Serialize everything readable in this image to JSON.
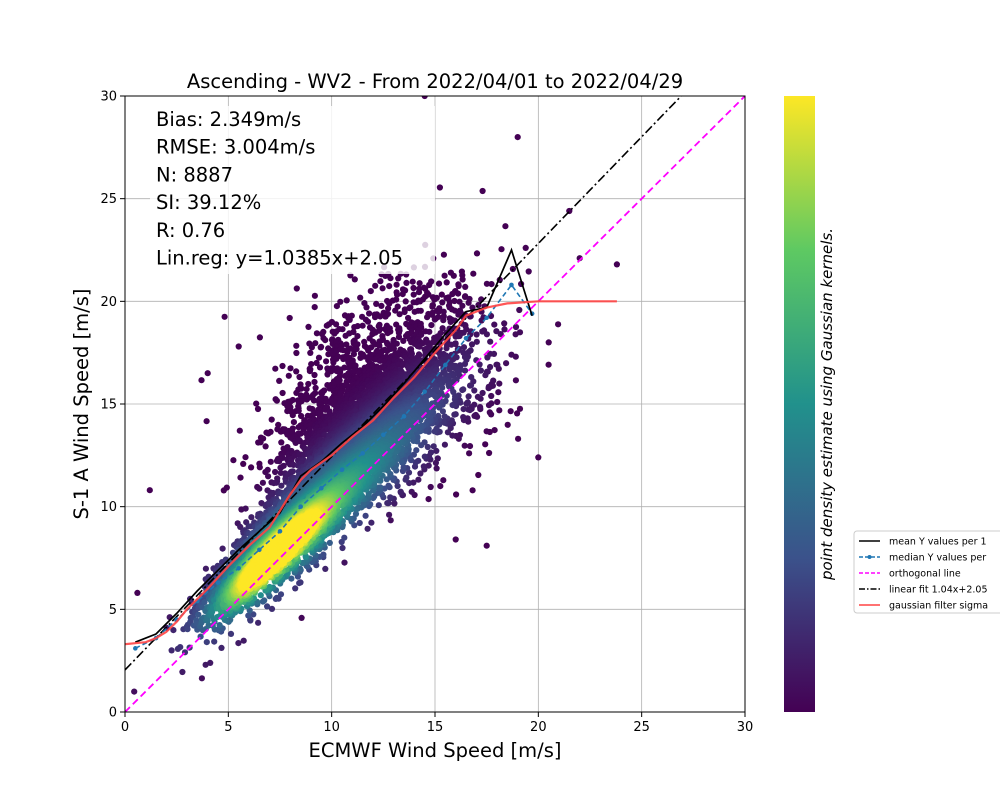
{
  "chart_data": {
    "type": "scatter",
    "title": "Ascending - WV2 - From 2022/04/01 to 2022/04/29",
    "xlabel": "ECMWF Wind Speed [m/s]",
    "ylabel": "S-1 A Wind Speed [m/s]",
    "xlim": [
      0,
      30
    ],
    "ylim": [
      0,
      30
    ],
    "xticks": [
      0,
      5,
      10,
      15,
      20,
      25,
      30
    ],
    "yticks": [
      0,
      5,
      10,
      15,
      20,
      25,
      30
    ],
    "grid": true,
    "colorbar_label": "point density estimate using Gaussian kernels.",
    "colormap": [
      "#440154",
      "#3b528b",
      "#21918c",
      "#5ec962",
      "#fde725"
    ],
    "stats": [
      "Bias: 2.349m/s",
      "RMSE: 3.004m/s",
      "N: 8887",
      "SI: 39.12%",
      "R: 0.76",
      "Lin.reg: y=1.0385x+2.05"
    ],
    "legend_position": "right, outside plot",
    "legend": [
      {
        "label": "mean Y values per 1",
        "color": "#000000",
        "style": "solid"
      },
      {
        "label": "median Y values per",
        "color": "#1f77b4",
        "style": "dashed-dots"
      },
      {
        "label": "orthogonal line",
        "color": "#ff00ff",
        "style": "dashed"
      },
      {
        "label": "linear fit 1.04x+2.05",
        "color": "#000000",
        "style": "dashdot"
      },
      {
        "label": "gaussian filter sigma",
        "color": "#ff4444",
        "style": "solid"
      }
    ],
    "series": [
      {
        "name": "mean Y values per 1",
        "color": "#000000",
        "x": [
          0.5,
          1.5,
          2.5,
          3.5,
          4.5,
          5.5,
          6.5,
          7.5,
          8.5,
          9.5,
          10.5,
          11.5,
          12.5,
          13.5,
          14.5,
          15.5,
          16.5,
          17.5,
          18.7,
          19.7
        ],
        "y": [
          3.4,
          3.8,
          4.8,
          5.9,
          6.9,
          7.9,
          8.8,
          9.7,
          11.5,
          12.2,
          13.1,
          13.9,
          14.9,
          16.0,
          17.2,
          18.4,
          19.5,
          19.7,
          22.5,
          19.3
        ]
      },
      {
        "name": "median Y values per",
        "color": "#1f77b4",
        "x": [
          0.5,
          1.5,
          2.5,
          3.5,
          4.5,
          5.5,
          6.5,
          7.5,
          8.5,
          9.5,
          10.5,
          11.5,
          12.5,
          13.5,
          14.5,
          15.5,
          16.5,
          17.5,
          18.7,
          19.7
        ],
        "y": [
          3.1,
          3.6,
          4.5,
          5.4,
          6.3,
          7.0,
          7.9,
          8.8,
          10.0,
          10.9,
          11.8,
          12.6,
          13.5,
          14.4,
          15.6,
          16.9,
          18.2,
          19.2,
          20.8,
          19.4
        ]
      },
      {
        "name": "gaussian filter sigma",
        "color": "#ff4444",
        "x": [
          0,
          0.5,
          1.0,
          1.5,
          2.0,
          2.5,
          3.0,
          4.0,
          5.0,
          6.0,
          7.0,
          8.0,
          8.5,
          9.0,
          10.0,
          11.0,
          12.0,
          13.0,
          14.0,
          15.0,
          16.0,
          16.5,
          17.5,
          18.5,
          20.0,
          21.0,
          22.0,
          23.8
        ],
        "y": [
          3.3,
          3.35,
          3.4,
          3.6,
          3.9,
          4.4,
          5.0,
          6.0,
          7.1,
          8.1,
          9.0,
          10.6,
          11.3,
          11.8,
          12.5,
          13.4,
          14.2,
          15.3,
          16.3,
          17.5,
          18.6,
          19.3,
          19.7,
          19.9,
          20.0,
          20.0,
          20.0,
          20.0
        ]
      },
      {
        "name": "linear fit 1.04x+2.05",
        "color": "#000000",
        "slope": 1.0385,
        "intercept": 2.05
      },
      {
        "name": "orthogonal line",
        "color": "#ff00ff",
        "slope": 1,
        "intercept": 0
      }
    ],
    "density_regions": [
      {
        "cx": 9.5,
        "cy": 10.5,
        "rx": 6.5,
        "ry": 1.55,
        "angle": 48,
        "count": 3600
      },
      {
        "cx": 7.0,
        "cy": 8.0,
        "rx": 3.6,
        "ry": 0.95,
        "angle": 45,
        "count": 2400
      },
      {
        "cx": 11.5,
        "cy": 14.0,
        "rx": 5.0,
        "ry": 2.6,
        "angle": 45,
        "count": 1500
      },
      {
        "cx": 13.0,
        "cy": 16.0,
        "rx": 6.0,
        "ry": 4.2,
        "angle": 45,
        "count": 1300
      }
    ],
    "outlier_points": [
      [
        1.2,
        10.8
      ],
      [
        4.0,
        16.5
      ],
      [
        20.5,
        18.0
      ],
      [
        22.0,
        22.1
      ],
      [
        21.5,
        24.4
      ],
      [
        23.8,
        21.8
      ],
      [
        20.0,
        12.4
      ],
      [
        17.5,
        8.1
      ],
      [
        16.0,
        8.4
      ],
      [
        19.0,
        28.0
      ],
      [
        14.5,
        30.0
      ],
      [
        5.5,
        17.8
      ],
      [
        0.6,
        5.8
      ]
    ]
  }
}
